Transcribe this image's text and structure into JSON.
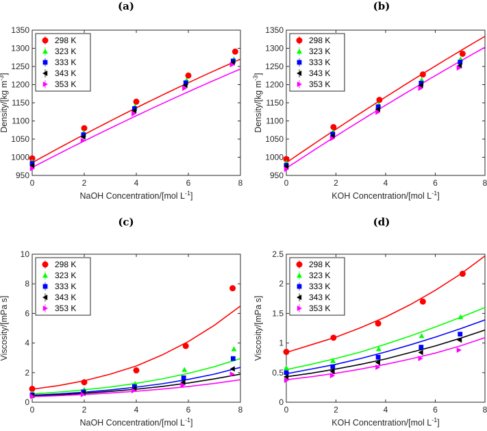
{
  "chart_data": [
    {
      "type": "scatter",
      "panel_label": "(a)",
      "xlabel_prefix": "NaOH Concentration/[mol L",
      "xlabel_sup": "-1",
      "xlabel_suffix": "]",
      "ylabel_prefix": "Density/[kg m",
      "ylabel_sup": "-3",
      "ylabel_suffix": "]",
      "xlim": [
        0,
        8
      ],
      "ylim": [
        950,
        1350
      ],
      "xticks": [
        0,
        2,
        4,
        6,
        8
      ],
      "yticks": [
        950,
        1000,
        1050,
        1100,
        1150,
        1200,
        1250,
        1300,
        1350
      ],
      "legend_position": "top-left",
      "series": [
        {
          "name": "298 K",
          "color": "#ff0000",
          "marker": "circle",
          "x": [
            0,
            2,
            4,
            6,
            7.8
          ],
          "y": [
            997,
            1080,
            1153,
            1225,
            1291
          ],
          "fit_x": [
            0,
            8
          ],
          "fit_y": [
            985,
            1270
          ],
          "fit_curve": 0.12
        },
        {
          "name": "323 K",
          "color": "#00ff00",
          "marker": "triangle-up",
          "x": [
            0,
            1.98,
            3.95,
            5.93,
            7.75
          ],
          "y": [
            988,
            1068,
            1140,
            1212,
            1270
          ],
          "fit_x": [],
          "fit_y": []
        },
        {
          "name": "333 K",
          "color": "#0000ff",
          "marker": "square",
          "x": [
            0,
            1.97,
            3.93,
            5.9,
            7.72
          ],
          "y": [
            983,
            1062,
            1134,
            1205,
            1265
          ],
          "fit_x": [],
          "fit_y": []
        },
        {
          "name": "343 K",
          "color": "#000000",
          "marker": "triangle-left",
          "x": [
            0,
            1.96,
            3.92,
            5.88,
            7.7
          ],
          "y": [
            977,
            1056,
            1128,
            1198,
            1260
          ],
          "fit_x": [],
          "fit_y": []
        },
        {
          "name": "353 K",
          "color": "#ff00ff",
          "marker": "triangle-right",
          "x": [
            0,
            1.95,
            3.9,
            5.85,
            7.68
          ],
          "y": [
            969,
            1046,
            1120,
            1190,
            1255
          ],
          "fit_x": [
            0,
            8
          ],
          "fit_y": [
            972,
            1243
          ],
          "fit_curve": 0.1
        }
      ]
    },
    {
      "type": "scatter",
      "panel_label": "(b)",
      "xlabel_prefix": "KOH Concentration/[mol L",
      "xlabel_sup": "-1",
      "xlabel_suffix": "]",
      "ylabel_prefix": "Density/[kg m",
      "ylabel_sup": "-3",
      "ylabel_suffix": "]",
      "xlim": [
        0,
        8
      ],
      "ylim": [
        950,
        1350
      ],
      "xticks": [
        0,
        2,
        4,
        6,
        8
      ],
      "yticks": [
        950,
        1000,
        1050,
        1100,
        1150,
        1200,
        1250,
        1300,
        1350
      ],
      "legend_position": "top-left",
      "series": [
        {
          "name": "298 K",
          "color": "#ff0000",
          "marker": "circle",
          "x": [
            0,
            1.9,
            3.75,
            5.5,
            7.1
          ],
          "y": [
            995,
            1083,
            1158,
            1228,
            1285
          ],
          "fit_x": [
            0,
            8
          ],
          "fit_y": [
            985,
            1333
          ],
          "fit_curve": 0.08
        },
        {
          "name": "323 K",
          "color": "#00ff00",
          "marker": "triangle-up",
          "x": [
            0,
            1.88,
            3.72,
            5.45,
            7.02
          ],
          "y": [
            985,
            1070,
            1145,
            1213,
            1270
          ],
          "fit_x": [],
          "fit_y": []
        },
        {
          "name": "333 K",
          "color": "#0000ff",
          "marker": "square",
          "x": [
            0,
            1.87,
            3.7,
            5.43,
            7.0
          ],
          "y": [
            978,
            1064,
            1139,
            1204,
            1262
          ],
          "fit_x": [],
          "fit_y": []
        },
        {
          "name": "343 K",
          "color": "#000000",
          "marker": "triangle-left",
          "x": [
            0,
            1.86,
            3.69,
            5.42,
            6.98
          ],
          "y": [
            975,
            1058,
            1132,
            1198,
            1252
          ],
          "fit_x": [],
          "fit_y": []
        },
        {
          "name": "353 K",
          "color": "#ff00ff",
          "marker": "triangle-right",
          "x": [
            0,
            1.85,
            3.68,
            5.4,
            6.95
          ],
          "y": [
            967,
            1052,
            1124,
            1190,
            1246
          ],
          "fit_x": [
            0,
            8
          ],
          "fit_y": [
            970,
            1303
          ],
          "fit_curve": 0.08
        }
      ]
    },
    {
      "type": "scatter",
      "panel_label": "(c)",
      "xlabel_prefix": "NaOH Concentration/[mol L",
      "xlabel_sup": "-1",
      "xlabel_suffix": "]",
      "ylabel_prefix": "Viscosity/[mPa s]",
      "ylabel_sup": "",
      "ylabel_suffix": "",
      "xlim": [
        0,
        8
      ],
      "ylim": [
        0,
        10
      ],
      "xticks": [
        0,
        2,
        4,
        6,
        8
      ],
      "yticks": [
        0,
        2,
        4,
        6,
        8,
        10
      ],
      "legend_position": "top-left",
      "series": [
        {
          "name": "298 K",
          "color": "#ff0000",
          "marker": "circle",
          "x": [
            0,
            2,
            4,
            5.9,
            7.7
          ],
          "y": [
            0.9,
            1.35,
            2.15,
            3.8,
            7.7
          ],
          "fit_x": [
            0,
            1,
            2,
            3,
            4,
            5,
            6,
            7,
            8
          ],
          "fit_y": [
            0.88,
            1.12,
            1.45,
            1.9,
            2.45,
            3.2,
            4.1,
            5.2,
            6.5
          ]
        },
        {
          "name": "323 K",
          "color": "#00ff00",
          "marker": "triangle-up",
          "x": [
            0,
            2,
            3.95,
            5.85,
            7.75
          ],
          "y": [
            0.6,
            0.85,
            1.25,
            2.2,
            3.6
          ],
          "fit_x": [
            0,
            1,
            2,
            3,
            4,
            5,
            6,
            7,
            8
          ],
          "fit_y": [
            0.56,
            0.68,
            0.84,
            1.03,
            1.28,
            1.58,
            1.95,
            2.4,
            2.95
          ]
        },
        {
          "name": "333 K",
          "color": "#0000ff",
          "marker": "square",
          "x": [
            0,
            1.97,
            3.93,
            5.82,
            7.72
          ],
          "y": [
            0.5,
            0.7,
            1.05,
            1.65,
            2.95
          ],
          "fit_x": [
            0,
            1,
            2,
            3,
            4,
            5,
            6,
            7,
            8
          ],
          "fit_y": [
            0.47,
            0.56,
            0.68,
            0.83,
            1.02,
            1.25,
            1.54,
            1.9,
            2.35
          ]
        },
        {
          "name": "343 K",
          "color": "#000000",
          "marker": "triangle-left",
          "x": [
            0,
            1.96,
            3.92,
            5.8,
            7.7
          ],
          "y": [
            0.45,
            0.6,
            0.9,
            1.35,
            2.25
          ],
          "fit_x": [
            0,
            1,
            2,
            3,
            4,
            5,
            6,
            7,
            8
          ],
          "fit_y": [
            0.42,
            0.5,
            0.6,
            0.73,
            0.88,
            1.07,
            1.3,
            1.58,
            1.9
          ]
        },
        {
          "name": "353 K",
          "color": "#ff00ff",
          "marker": "triangle-right",
          "x": [
            0,
            1.95,
            3.9,
            5.78,
            7.68
          ],
          "y": [
            0.4,
            0.52,
            0.78,
            1.15,
            1.9
          ],
          "fit_x": [
            0,
            1,
            2,
            3,
            4,
            5,
            6,
            7,
            8
          ],
          "fit_y": [
            0.38,
            0.44,
            0.52,
            0.62,
            0.74,
            0.89,
            1.06,
            1.27,
            1.52
          ]
        }
      ]
    },
    {
      "type": "scatter",
      "panel_label": "(d)",
      "xlabel_prefix": "KOH Concentration/[mol L",
      "xlabel_sup": "-1",
      "xlabel_suffix": "]",
      "ylabel_prefix": "Viscosity/[mPa s]",
      "ylabel_sup": "",
      "ylabel_suffix": "",
      "xlim": [
        0,
        8
      ],
      "ylim": [
        0,
        2.5
      ],
      "xticks": [
        0,
        2,
        4,
        6,
        8
      ],
      "yticks": [
        0,
        0.5,
        1,
        1.5,
        2,
        2.5
      ],
      "yticklabels": [
        "0",
        "0.5",
        "1",
        "1.5",
        "2",
        "2.5"
      ],
      "legend_position": "top-left",
      "series": [
        {
          "name": "298 K",
          "color": "#ff0000",
          "marker": "circle",
          "x": [
            0,
            1.9,
            3.7,
            5.5,
            7.1
          ],
          "y": [
            0.85,
            1.09,
            1.33,
            1.7,
            2.17
          ],
          "fit_x": [
            0,
            1,
            2,
            3,
            4,
            5,
            6,
            7,
            8
          ],
          "fit_y": [
            0.84,
            0.97,
            1.1,
            1.26,
            1.44,
            1.65,
            1.89,
            2.16,
            2.47
          ]
        },
        {
          "name": "323 K",
          "color": "#00ff00",
          "marker": "triangle-up",
          "x": [
            0,
            1.88,
            3.72,
            5.45,
            7.02
          ],
          "y": [
            0.58,
            0.7,
            0.9,
            1.12,
            1.44
          ],
          "fit_x": [
            0,
            1,
            2,
            3,
            4,
            5,
            6,
            7,
            8
          ],
          "fit_y": [
            0.55,
            0.64,
            0.74,
            0.85,
            0.98,
            1.12,
            1.27,
            1.43,
            1.6
          ]
        },
        {
          "name": "333 K",
          "color": "#0000ff",
          "marker": "square",
          "x": [
            0,
            1.87,
            3.7,
            5.43,
            7.0
          ],
          "y": [
            0.5,
            0.6,
            0.76,
            0.93,
            1.15
          ],
          "fit_x": [
            0,
            1,
            2,
            3,
            4,
            5,
            6,
            7,
            8
          ],
          "fit_y": [
            0.48,
            0.56,
            0.64,
            0.74,
            0.85,
            0.97,
            1.1,
            1.24,
            1.39
          ]
        },
        {
          "name": "343 K",
          "color": "#000000",
          "marker": "triangle-left",
          "x": [
            0,
            1.86,
            3.69,
            5.42,
            6.98
          ],
          "y": [
            0.43,
            0.52,
            0.67,
            0.84,
            1.05
          ],
          "fit_x": [
            0,
            1,
            2,
            3,
            4,
            5,
            6,
            7,
            8
          ],
          "fit_y": [
            0.43,
            0.49,
            0.56,
            0.64,
            0.73,
            0.84,
            0.95,
            1.08,
            1.22
          ]
        },
        {
          "name": "353 K",
          "color": "#ff00ff",
          "marker": "triangle-right",
          "x": [
            0,
            1.85,
            3.68,
            5.4,
            6.95
          ],
          "y": [
            0.37,
            0.45,
            0.59,
            0.74,
            0.88
          ],
          "fit_x": [
            0,
            1,
            2,
            3,
            4,
            5,
            6,
            7,
            8
          ],
          "fit_y": [
            0.38,
            0.43,
            0.49,
            0.56,
            0.64,
            0.73,
            0.83,
            0.95,
            1.09
          ]
        }
      ]
    }
  ]
}
